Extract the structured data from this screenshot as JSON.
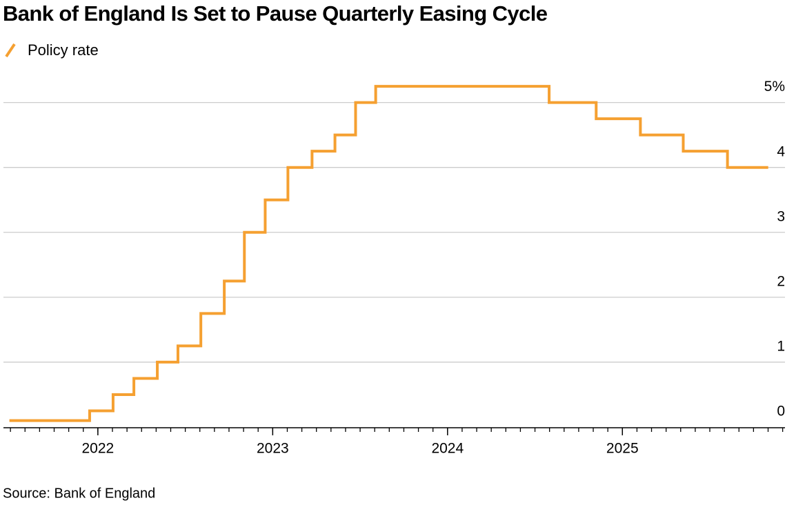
{
  "chart_data": {
    "type": "line",
    "step": "post",
    "title": "Bank of England Is Set to Pause Quarterly Easing Cycle",
    "source": "Source: Bank of England",
    "x": [
      2021.494,
      2021.953,
      2022.087,
      2022.206,
      2022.34,
      2022.458,
      2022.589,
      2022.723,
      2022.838,
      2022.957,
      2023.087,
      2023.225,
      2023.356,
      2023.474,
      2023.589,
      2024.581,
      2024.85,
      2025.103,
      2025.348,
      2025.601,
      2025.834
    ],
    "series": [
      {
        "name": "Policy rate",
        "color": "#f5a031",
        "values": [
          0.1,
          0.25,
          0.5,
          0.75,
          1.0,
          1.25,
          1.75,
          2.25,
          3.0,
          3.5,
          4.0,
          4.25,
          4.5,
          5.0,
          5.25,
          5.0,
          4.75,
          4.5,
          4.25,
          4.0,
          4.0
        ]
      }
    ],
    "xlim": [
      2021.46,
      2025.93
    ],
    "xticks": [
      2022,
      2023,
      2024,
      2025
    ],
    "ylim": [
      0,
      5.4
    ],
    "yticks": [
      0,
      1,
      2,
      3,
      4,
      {
        "value": 5,
        "label": "5%"
      }
    ],
    "grid": true,
    "legend": "top-left"
  }
}
